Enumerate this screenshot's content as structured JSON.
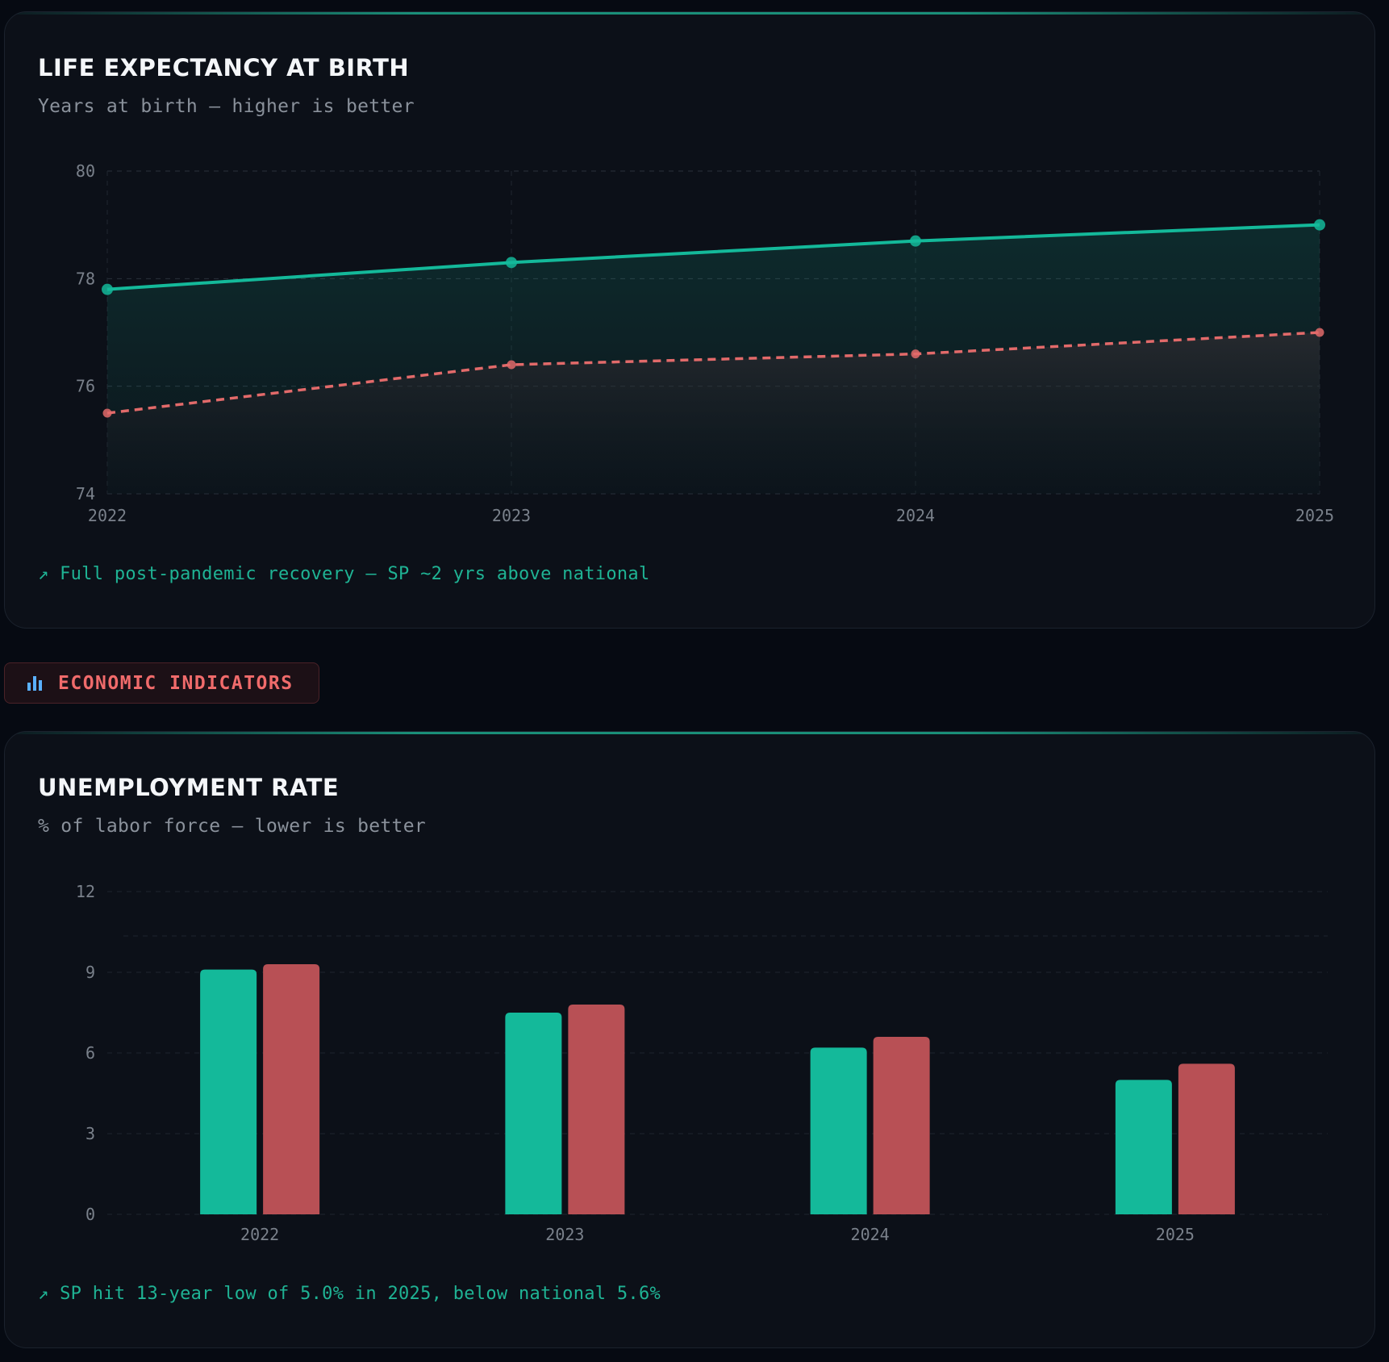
{
  "life_card": {
    "title": "LIFE EXPECTANCY AT BIRTH",
    "subtitle": "Years at birth — higher is better",
    "note": "↗ Full post-pandemic recovery — SP ~2 yrs above national"
  },
  "section_badge": {
    "icon": "bar-chart-icon",
    "label": "ECONOMIC INDICATORS"
  },
  "unemp_card": {
    "title": "UNEMPLOYMENT RATE",
    "subtitle": "% of labor force — lower is better",
    "note": "↗ SP hit 13-year low of 5.0% in 2025, below national 5.6%"
  },
  "colors": {
    "sp": "#14b99a",
    "national": "#e26a6a",
    "national_bar": "#b85055"
  },
  "chart_data": [
    {
      "type": "line",
      "title": "LIFE EXPECTANCY AT BIRTH",
      "subtitle": "Years at birth — higher is better",
      "x": [
        "2022",
        "2023",
        "2024",
        "2025"
      ],
      "ylim": [
        74,
        80
      ],
      "yticks": [
        74,
        76,
        78,
        80
      ],
      "grid": true,
      "series": [
        {
          "name": "SP",
          "style": "solid",
          "values": [
            77.8,
            78.3,
            78.7,
            79.0
          ]
        },
        {
          "name": "National",
          "style": "dashed",
          "values": [
            75.5,
            76.4,
            76.6,
            77.0
          ]
        }
      ]
    },
    {
      "type": "bar",
      "title": "UNEMPLOYMENT RATE",
      "subtitle": "% of labor force — lower is better",
      "categories": [
        "2022",
        "2023",
        "2024",
        "2025"
      ],
      "ylim": [
        0,
        12
      ],
      "yticks": [
        0,
        3,
        6,
        9,
        12
      ],
      "grid": true,
      "series": [
        {
          "name": "SP",
          "values": [
            9.1,
            7.5,
            6.2,
            5.0
          ]
        },
        {
          "name": "National",
          "values": [
            9.3,
            7.8,
            6.6,
            5.6
          ]
        }
      ]
    }
  ]
}
